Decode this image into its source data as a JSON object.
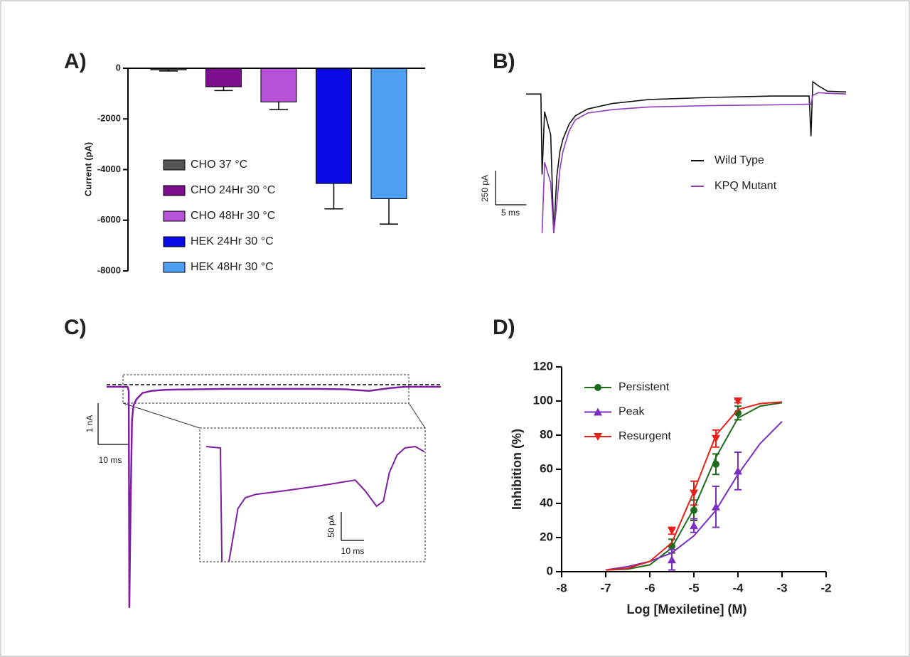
{
  "chart_data": [
    {
      "type": "bar",
      "title": "A)",
      "ylabel": "Current (pA)",
      "categories": [
        "CHO 37 °C",
        "CHO 24Hr 30 °C",
        "CHO 48Hr 30 °C",
        "HEK 24Hr 30 °C",
        "HEK 48Hr 30 °C"
      ],
      "values": [
        -60,
        -730,
        -1330,
        -4550,
        -5150
      ],
      "errors": [
        50,
        150,
        300,
        1000,
        1000
      ],
      "colors": [
        "#555555",
        "#7b0d8e",
        "#b653d9",
        "#0a0ae6",
        "#4c9ff2"
      ],
      "ylim": [
        -8000,
        0
      ],
      "yticks": [
        0,
        -2000,
        -4000,
        -6000,
        -8000
      ]
    },
    {
      "type": "line",
      "title": "B)",
      "x": [
        0,
        2.4,
        2.6,
        3.0,
        4.0,
        4.5,
        5.0,
        5.5,
        6.0,
        7.0,
        8.0,
        10,
        14,
        20,
        30,
        40,
        46.0,
        46.3,
        46.6,
        47.5,
        49,
        52
      ],
      "series": [
        {
          "name": "Wild Type",
          "color": "#111111",
          "values": [
            0,
            0,
            -590,
            -130,
            -300,
            -1020,
            -600,
            -420,
            -330,
            -220,
            -160,
            -110,
            -70,
            -40,
            -25,
            -15,
            -15,
            -310,
            90,
            60,
            20,
            15
          ]
        },
        {
          "name": "KPQ  Mutant",
          "color": "#8e3bbd",
          "values": [
            null,
            null,
            -1020,
            -500,
            -650,
            -1020,
            -800,
            -550,
            -420,
            -270,
            -190,
            -140,
            -115,
            -95,
            -85,
            -80,
            -75,
            -75,
            -10,
            10,
            5,
            0
          ]
        }
      ],
      "xlim": [
        0,
        52
      ],
      "ylim": [
        -1050,
        100
      ],
      "scale_bars": [
        {
          "value": 250,
          "label": "250 pA",
          "axis": "y"
        },
        {
          "value": 5,
          "label": "5 ms",
          "axis": "x"
        }
      ]
    },
    {
      "type": "line",
      "title": "C)",
      "color": "#7d1fa0",
      "x": [
        0,
        7.0,
        7.4,
        7.6,
        8.0,
        8.5,
        9,
        10,
        12,
        15,
        20,
        40,
        70,
        80,
        88,
        95,
        100,
        112
      ],
      "values": [
        0,
        0,
        -0.1,
        -5.36,
        -3.0,
        -0.8,
        -0.45,
        -0.3,
        -0.15,
        -0.1,
        -0.07,
        -0.05,
        -0.05,
        -0.06,
        -0.1,
        -0.03,
        0,
        0
      ],
      "xlim": [
        0,
        112
      ],
      "ylim": [
        -5.5,
        0.5
      ],
      "scale_bars": [
        {
          "value": 1,
          "label": "1 nA",
          "axis": "y"
        },
        {
          "value": 10,
          "label": "10 ms",
          "axis": "x"
        }
      ],
      "inset": {
        "x": [
          0,
          6.25,
          6.9,
          8,
          10,
          14,
          17.2,
          21.9,
          34,
          50,
          65.6,
          70,
          75,
          78,
          80.6,
          84,
          87.5,
          92,
          96
        ],
        "values": [
          0,
          -2.5,
          -202.5,
          null,
          -202.5,
          -109,
          -90,
          -84,
          -78,
          -69,
          -59,
          -78,
          -105,
          -96,
          -46,
          -15,
          -2.5,
          0,
          -9
        ],
        "xlim": [
          0,
          97
        ],
        "ylim": [
          -202.5,
          32.5
        ],
        "scale_bars": [
          {
            "value": 50,
            "label": "50 pA",
            "axis": "y"
          },
          {
            "value": 10,
            "label": "10 ms",
            "axis": "x"
          }
        ]
      }
    },
    {
      "type": "scatter",
      "title": "D)",
      "xlabel": "Log [Mexiletine] (M)",
      "ylabel": "Inhibition (%)",
      "x": [
        -5.5,
        -5,
        -4.5,
        -4
      ],
      "fit_x": [
        -7,
        -6.5,
        -6,
        -5.5,
        -5,
        -4.5,
        -4,
        -3.5,
        -3
      ],
      "series": [
        {
          "name": "Persistent",
          "color": "#1e6b1e",
          "marker": "circle",
          "values": [
            15,
            36,
            63,
            93
          ],
          "errors": [
            4,
            6,
            6,
            4
          ],
          "fit": [
            1,
            1.5,
            4,
            14,
            37,
            67,
            90,
            97,
            99
          ]
        },
        {
          "name": "Peak",
          "color": "#7b2fbf",
          "marker": "triangle-up",
          "values": [
            7,
            27,
            38,
            59
          ],
          "errors": [
            6,
            4,
            12,
            11
          ],
          "fit": [
            1,
            3,
            6,
            11,
            21,
            36,
            57,
            75,
            88
          ]
        },
        {
          "name": "Resurgent",
          "color": "#e8201a",
          "marker": "triangle-down",
          "values": [
            24,
            46,
            78,
            100
          ],
          "errors": [
            2,
            7,
            5,
            1
          ],
          "fit": [
            1,
            2,
            6,
            17,
            47,
            80,
            95,
            98.5,
            99.5
          ]
        }
      ],
      "xlim": [
        -8,
        -2
      ],
      "ylim": [
        0,
        120
      ],
      "xticks": [
        -8,
        -7,
        -6,
        -5,
        -4,
        -3,
        -2
      ],
      "yticks": [
        0,
        20,
        40,
        60,
        80,
        100,
        120
      ]
    }
  ]
}
